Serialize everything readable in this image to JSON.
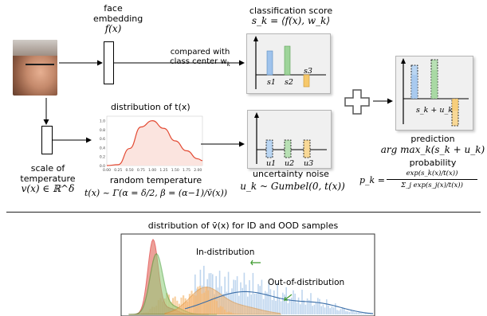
{
  "top": {
    "face_embedding": {
      "line1": "face",
      "line2": "embedding",
      "formula": "f(x)"
    },
    "compared": {
      "line1": "compared with",
      "line2": "class center w",
      "sub": "k"
    },
    "classification": {
      "title": "classification score",
      "formula": "s_k = ⟨f(x), w_k⟩",
      "bars": [
        "s1",
        "s2",
        "s3"
      ]
    },
    "scale": {
      "line1": "scale of",
      "line2": "temperature",
      "formula": "v(x) ∈ ℝ^δ"
    },
    "temp_dist": {
      "title": "distribution of t(x)",
      "yticks": [
        "1.0",
        "0.8",
        "0.6",
        "0.4",
        "0.2",
        "0.0"
      ],
      "xticks": [
        "0.00",
        "0.25",
        "0.50",
        "0.75",
        "1.00",
        "1.25",
        "1.50",
        "1.75",
        "2.00"
      ]
    },
    "random_temp": {
      "label": "random temperature",
      "formula": "t(x) ~ Γ(α = δ/2, β = (α−1)/v̄(x))"
    },
    "uncertainty": {
      "title": "uncertainty noise",
      "formula": "u_k ~ Gumbel(0, t(x))",
      "bars": [
        "u1",
        "u2",
        "u3"
      ]
    },
    "prediction": {
      "bar_label": "s_k + u_k",
      "label": "prediction",
      "formula": "arg max_k(s_k + u_k)",
      "prob_label": "probability",
      "prob_formula_lhs": "p_k =",
      "prob_num": "exp(s_k(x)/t(x))",
      "prob_den": "Σ_j exp(s_j(x)/t(x))"
    }
  },
  "bottom": {
    "title": "distribution of v̄(x) for ID and OOD samples",
    "in_label": "In-distribution",
    "out_label": "Out-of-distribution"
  },
  "colors": {
    "blue": "#9fc3ec",
    "green": "#9ed49a",
    "orange": "#f6c86b",
    "red_curve": "#e34a33",
    "panel_bg": "#f0f0f0"
  },
  "chart_data": {
    "type": "line",
    "title": "distribution of t(x)",
    "x": [
      0.0,
      0.25,
      0.5,
      0.75,
      1.0,
      1.25,
      1.5,
      1.75,
      2.0,
      2.1
    ],
    "series": [
      {
        "values": [
          0.0,
          0.02,
          0.38,
          0.86,
          1.0,
          0.83,
          0.55,
          0.33,
          0.15,
          0.11
        ]
      }
    ],
    "xlim": [
      0,
      2.1
    ],
    "ylim": [
      0,
      1.1
    ]
  }
}
